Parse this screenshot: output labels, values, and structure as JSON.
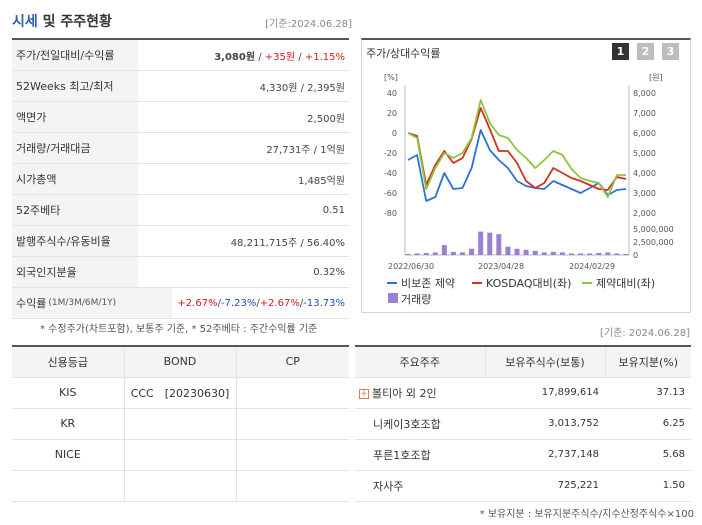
{
  "header": {
    "title_accent": "시세",
    "title_rest": " 및 주주현황",
    "date": "[기준:2024.06.28]"
  },
  "summary": {
    "rows": [
      {
        "label": "주가/전일대비/수익률",
        "price": "3,080원",
        "sep1": " / ",
        "change": "+35원",
        "sep2": " / ",
        "rate": "+1.15%"
      },
      {
        "label": "52Weeks 최고/최저",
        "value": "4,330원 / 2,395원"
      },
      {
        "label": "액면가",
        "value": "2,500원"
      },
      {
        "label": "거래량/거래대금",
        "value": "27,731주 / 1억원"
      },
      {
        "label": "시가총액",
        "value": "1,485억원"
      },
      {
        "label": "52주베타",
        "value": "0.51"
      },
      {
        "label": "발행주식수/유동비율",
        "value": "48,211,715주 / 56.40%"
      },
      {
        "label": "외국인지분율",
        "value": "0.32%"
      },
      {
        "label": "수익률",
        "label_sub": "(1M/3M/6M/1Y)",
        "r1": "+2.67%",
        "r2": "-7.23%",
        "r3": "+2.67%",
        "r4": "-13.73%",
        "sep": "/"
      }
    ],
    "note": "* 수정주가(차트포함), 보통주 기준, * 52주베타 : 주간수익률 기준"
  },
  "chart_panel": {
    "title": "주가/상대수익률",
    "buttons": [
      "1",
      "2",
      "3"
    ]
  },
  "chart_data": {
    "type": "line",
    "left_axis": {
      "unit": "[%]",
      "ticks": [
        40,
        20,
        0,
        -20,
        -40,
        -60,
        -80
      ]
    },
    "right_axis": {
      "unit": "[원]",
      "ticks": [
        "8,000",
        "7,000",
        "6,000",
        "5,000",
        "4,000",
        "3,000",
        "2,000"
      ]
    },
    "volume_axis": {
      "ticks": [
        "5,000,000",
        "2,500,000",
        "0"
      ]
    },
    "x_labels": [
      "2022/06/30",
      "2023/04/28",
      "2024/02/29"
    ],
    "series": [
      {
        "name": "비보존 제약",
        "color": "#2f6fd6",
        "values": [
          -27,
          -22,
          -68,
          -64,
          -40,
          -56,
          -55,
          -35,
          3,
          -17,
          -27,
          -35,
          -48,
          -53,
          -55,
          -56,
          -48,
          -52,
          -56,
          -60,
          -55,
          -50,
          -62,
          -57,
          -56
        ]
      },
      {
        "name": "KOSDAQ대비(좌)",
        "color": "#d0321d",
        "values": [
          0,
          -3,
          -52,
          -32,
          -18,
          -30,
          -25,
          -6,
          25,
          4,
          -18,
          -18,
          -30,
          -48,
          -55,
          -50,
          -35,
          -40,
          -45,
          -48,
          -52,
          -56,
          -57,
          -44,
          -46
        ]
      },
      {
        "name": "제약대비(좌)",
        "color": "#8cc63f",
        "values": [
          0,
          -5,
          -56,
          -35,
          -20,
          -25,
          -20,
          -5,
          33,
          10,
          -2,
          -5,
          -17,
          -25,
          -35,
          -27,
          -18,
          -22,
          -36,
          -45,
          -48,
          -50,
          -64,
          -42,
          -42
        ]
      }
    ],
    "volume": {
      "name": "거래량",
      "color": "#9c7fd0",
      "values": [
        0.2,
        0.3,
        0.4,
        0.5,
        1.9,
        0.6,
        0.5,
        1.2,
        4.5,
        4.3,
        4.0,
        1.6,
        1.2,
        1.0,
        0.8,
        0.5,
        0.6,
        0.5,
        0.3,
        0.3,
        0.3,
        0.4,
        0.5,
        0.3,
        0.2
      ]
    }
  },
  "legend": [
    "비보존 제약",
    "KOSDAQ대비(좌)",
    "제약대비(좌)",
    "거래량"
  ],
  "right_date": "[기준: 2024.06.28]",
  "credit": {
    "headers": [
      "신용등급",
      "BOND",
      "CP"
    ],
    "rows": [
      [
        "KIS",
        "CCC　[20230630]",
        ""
      ],
      [
        "KR",
        "",
        ""
      ],
      [
        "NICE",
        "",
        ""
      ],
      [
        "",
        "",
        ""
      ]
    ]
  },
  "holders": {
    "headers": [
      "주요주주",
      "보유주식수(보통)",
      "보유지분(%)"
    ],
    "rows": [
      {
        "name": "볼티아 외 2인",
        "shares": "17,899,614",
        "pct": "37.13",
        "expand": true
      },
      {
        "name": "니케이3호조합",
        "shares": "3,013,752",
        "pct": "6.25"
      },
      {
        "name": "푸른1호조합",
        "shares": "2,737,148",
        "pct": "5.68"
      },
      {
        "name": "자사주",
        "shares": "725,221",
        "pct": "1.50"
      }
    ],
    "note": "* 보유지분 : 보유지분주식수/지수산정주식수×100"
  }
}
